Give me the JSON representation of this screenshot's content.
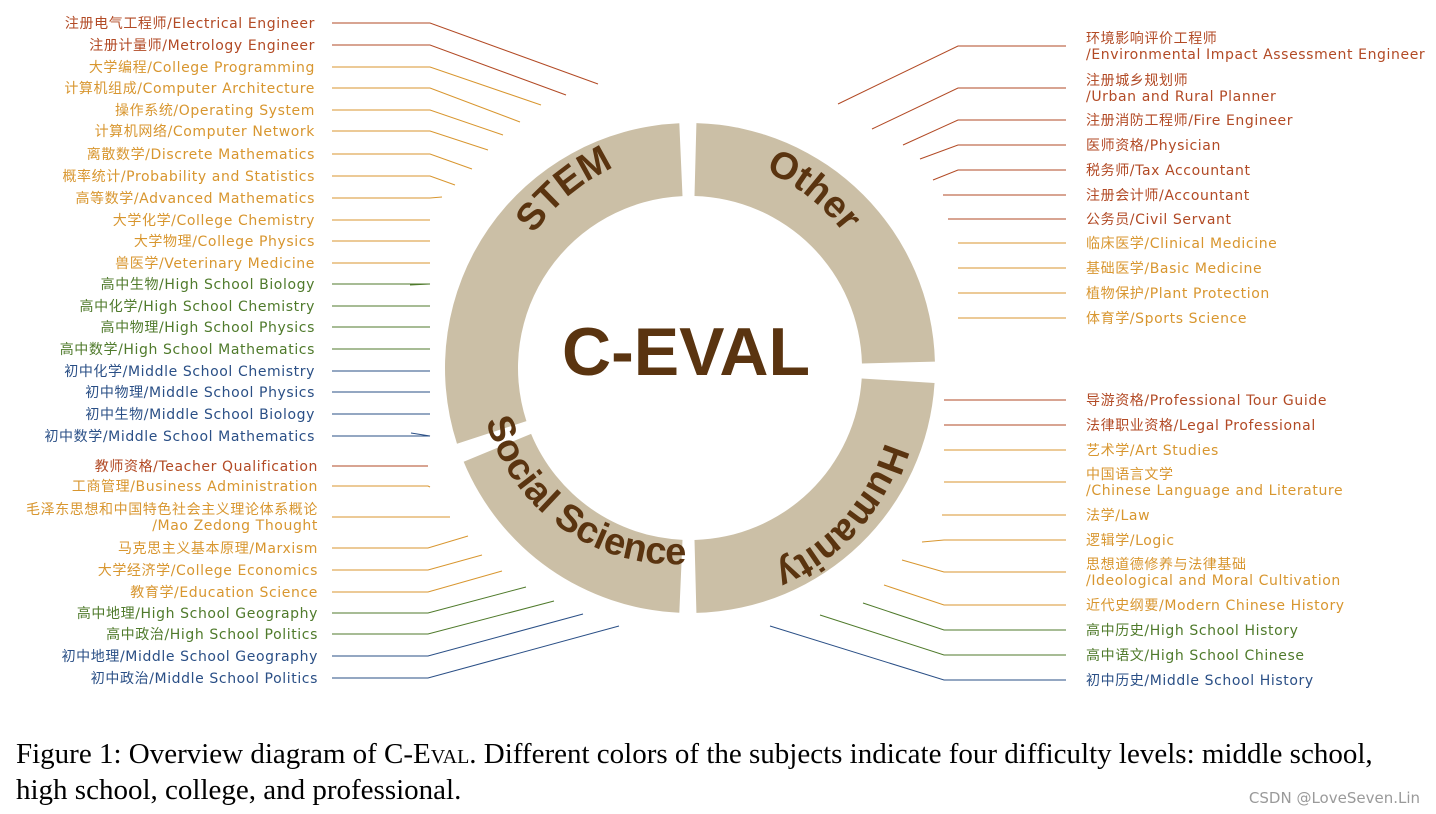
{
  "colors": {
    "professional": "#b24a25",
    "college": "#d8962f",
    "high_school": "#4f7a2b",
    "middle_school": "#2a4f86",
    "ring": "#cbbfa6",
    "title": "#5a3410"
  },
  "center_title": "C-EVAL",
  "sectors": {
    "stem": "STEM",
    "other": "Other",
    "humanity": "Humanity",
    "social_science": "Social Science"
  },
  "subjects": {
    "stem": [
      {
        "text": "注册电气工程师/Electrical Engineer",
        "level": "professional"
      },
      {
        "text": "注册计量师/Metrology Engineer",
        "level": "professional"
      },
      {
        "text": "大学编程/College Programming",
        "level": "college"
      },
      {
        "text": "计算机组成/Computer Architecture",
        "level": "college"
      },
      {
        "text": "操作系统/Operating System",
        "level": "college"
      },
      {
        "text": "计算机网络/Computer Network",
        "level": "college"
      },
      {
        "text": "离散数学/Discrete Mathematics",
        "level": "college"
      },
      {
        "text": "概率统计/Probability and Statistics",
        "level": "college"
      },
      {
        "text": "高等数学/Advanced Mathematics",
        "level": "college"
      },
      {
        "text": "大学化学/College Chemistry",
        "level": "college"
      },
      {
        "text": "大学物理/College Physics",
        "level": "college"
      },
      {
        "text": "兽医学/Veterinary Medicine",
        "level": "college"
      },
      {
        "text": "高中生物/High School Biology",
        "level": "high_school"
      },
      {
        "text": "高中化学/High School Chemistry",
        "level": "high_school"
      },
      {
        "text": "高中物理/High School Physics",
        "level": "high_school"
      },
      {
        "text": "高中数学/High School Mathematics",
        "level": "high_school"
      },
      {
        "text": "初中化学/Middle School Chemistry",
        "level": "middle_school"
      },
      {
        "text": "初中物理/Middle School Physics",
        "level": "middle_school"
      },
      {
        "text": "初中生物/Middle School Biology",
        "level": "middle_school"
      },
      {
        "text": "初中数学/Middle School Mathematics",
        "level": "middle_school"
      }
    ],
    "social_science": [
      {
        "text": "教师资格/Teacher Qualification",
        "level": "professional"
      },
      {
        "text": "工商管理/Business Administration",
        "level": "college"
      },
      {
        "text": "毛泽东思想和中国特色社会主义理论体系概论",
        "text2": "/Mao Zedong Thought",
        "level": "college"
      },
      {
        "text": "马克思主义基本原理/Marxism",
        "level": "college"
      },
      {
        "text": "大学经济学/College Economics",
        "level": "college"
      },
      {
        "text": "教育学/Education Science",
        "level": "college"
      },
      {
        "text": "高中地理/High School Geography",
        "level": "high_school"
      },
      {
        "text": "高中政治/High School Politics",
        "level": "high_school"
      },
      {
        "text": "初中地理/Middle School Geography",
        "level": "middle_school"
      },
      {
        "text": "初中政治/Middle School Politics",
        "level": "middle_school"
      }
    ],
    "other": [
      {
        "text": "环境影响评价工程师",
        "text2": "/Environmental Impact Assessment Engineer",
        "level": "professional"
      },
      {
        "text": "注册城乡规划师",
        "text2": "/Urban and Rural Planner",
        "level": "professional"
      },
      {
        "text": "注册消防工程师/Fire Engineer",
        "level": "professional"
      },
      {
        "text": "医师资格/Physician",
        "level": "professional"
      },
      {
        "text": "税务师/Tax Accountant",
        "level": "professional"
      },
      {
        "text": "注册会计师/Accountant",
        "level": "professional"
      },
      {
        "text": "公务员/Civil Servant",
        "level": "professional"
      },
      {
        "text": "临床医学/Clinical Medicine",
        "level": "college"
      },
      {
        "text": "基础医学/Basic Medicine",
        "level": "college"
      },
      {
        "text": "植物保护/Plant Protection",
        "level": "college"
      },
      {
        "text": "体育学/Sports Science",
        "level": "college"
      }
    ],
    "humanity": [
      {
        "text": "导游资格/Professional Tour Guide",
        "level": "professional"
      },
      {
        "text": "法律职业资格/Legal Professional",
        "level": "professional"
      },
      {
        "text": "艺术学/Art Studies",
        "level": "college"
      },
      {
        "text": "中国语言文学",
        "text2": "/Chinese Language and Literature",
        "level": "college"
      },
      {
        "text": "法学/Law",
        "level": "college"
      },
      {
        "text": "逻辑学/Logic",
        "level": "college"
      },
      {
        "text": "思想道德修养与法律基础",
        "text2": "/Ideological and Moral Cultivation",
        "level": "college"
      },
      {
        "text": "近代史纲要/Modern Chinese History",
        "level": "college"
      },
      {
        "text": "高中历史/High School History",
        "level": "high_school"
      },
      {
        "text": "高中语文/High School Chinese",
        "level": "high_school"
      },
      {
        "text": "初中历史/Middle School History",
        "level": "middle_school"
      }
    ]
  },
  "caption": {
    "prefix": "Figure 1: Overview diagram of C-",
    "smallcaps": "Eval",
    "suffix": ". Different colors of the subjects indicate four difficulty levels: middle school, high school, college, and professional."
  },
  "watermark": "CSDN @LoveSeven.Lin"
}
